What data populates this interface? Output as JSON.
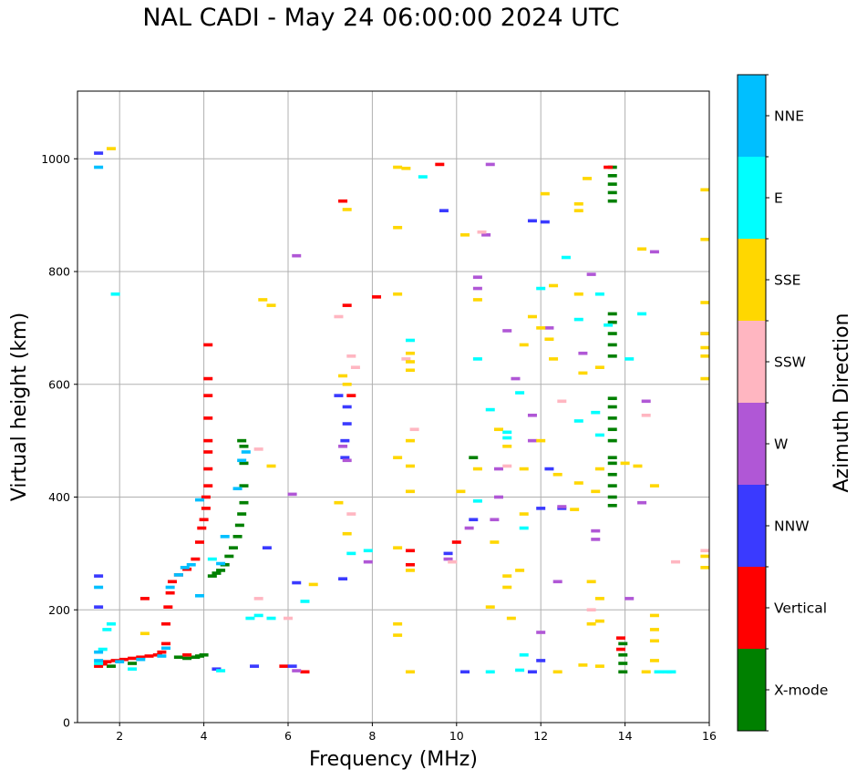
{
  "chart_data": {
    "type": "scatter",
    "title": "NAL CADI - May 24 06:00:00 2024 UTC",
    "xlabel": "Frequency (MHz)",
    "ylabel": "Virtual height (km)",
    "xlim": [
      1,
      16
    ],
    "ylim": [
      0,
      1120
    ],
    "xticks": [
      2,
      4,
      6,
      8,
      10,
      12,
      14,
      16
    ],
    "yticks": [
      0,
      200,
      400,
      600,
      800,
      1000
    ],
    "grid": true,
    "colorbar": {
      "title": "Azimuth Direction",
      "categories": [
        {
          "label": "X-mode",
          "color": "#008000"
        },
        {
          "label": "Vertical",
          "color": "#ff0000"
        },
        {
          "label": "NNW",
          "color": "#3a3aff"
        },
        {
          "label": "W",
          "color": "#b057d6"
        },
        {
          "label": "SSW",
          "color": "#ffb6c1"
        },
        {
          "label": "SSE",
          "color": "#ffd700"
        },
        {
          "label": "E",
          "color": "#00ffff"
        },
        {
          "label": "NNE",
          "color": "#00bfff"
        }
      ]
    },
    "series": [
      {
        "name": "X-mode",
        "points": [
          [
            4.0,
            120
          ],
          [
            3.9,
            118
          ],
          [
            3.8,
            116
          ],
          [
            3.6,
            114
          ],
          [
            3.4,
            116
          ],
          [
            4.2,
            260
          ],
          [
            4.3,
            265
          ],
          [
            4.4,
            270
          ],
          [
            4.5,
            280
          ],
          [
            4.6,
            295
          ],
          [
            4.7,
            310
          ],
          [
            4.8,
            330
          ],
          [
            4.85,
            350
          ],
          [
            4.9,
            370
          ],
          [
            4.95,
            390
          ],
          [
            4.95,
            420
          ],
          [
            4.95,
            460
          ],
          [
            4.95,
            490
          ],
          [
            4.9,
            500
          ],
          [
            13.7,
            925
          ],
          [
            13.7,
            940
          ],
          [
            13.7,
            955
          ],
          [
            13.7,
            970
          ],
          [
            13.7,
            985
          ],
          [
            13.7,
            650
          ],
          [
            13.7,
            670
          ],
          [
            13.7,
            690
          ],
          [
            13.7,
            710
          ],
          [
            13.7,
            725
          ],
          [
            13.7,
            385
          ],
          [
            13.7,
            400
          ],
          [
            13.7,
            420
          ],
          [
            13.7,
            440
          ],
          [
            13.7,
            460
          ],
          [
            13.7,
            470
          ],
          [
            13.7,
            500
          ],
          [
            13.7,
            520
          ],
          [
            13.7,
            540
          ],
          [
            13.7,
            560
          ],
          [
            13.7,
            575
          ],
          [
            13.95,
            90
          ],
          [
            13.95,
            105
          ],
          [
            13.95,
            120
          ],
          [
            13.95,
            140
          ],
          [
            10.4,
            470
          ],
          [
            2.3,
            105
          ],
          [
            1.8,
            100
          ]
        ]
      },
      {
        "name": "Vertical",
        "points": [
          [
            1.5,
            100
          ],
          [
            1.6,
            104
          ],
          [
            1.7,
            108
          ],
          [
            1.9,
            110
          ],
          [
            2.1,
            112
          ],
          [
            2.3,
            114
          ],
          [
            2.5,
            116
          ],
          [
            2.7,
            118
          ],
          [
            2.9,
            120
          ],
          [
            3.0,
            125
          ],
          [
            3.1,
            140
          ],
          [
            3.1,
            175
          ],
          [
            3.15,
            205
          ],
          [
            3.2,
            230
          ],
          [
            3.25,
            250
          ],
          [
            3.4,
            262
          ],
          [
            3.6,
            272
          ],
          [
            3.8,
            290
          ],
          [
            3.9,
            320
          ],
          [
            3.95,
            345
          ],
          [
            4.0,
            360
          ],
          [
            4.05,
            380
          ],
          [
            4.05,
            400
          ],
          [
            4.1,
            420
          ],
          [
            4.1,
            450
          ],
          [
            4.1,
            480
          ],
          [
            4.1,
            500
          ],
          [
            4.1,
            540
          ],
          [
            4.1,
            580
          ],
          [
            4.1,
            610
          ],
          [
            4.1,
            670
          ],
          [
            3.6,
            120
          ],
          [
            2.6,
            220
          ],
          [
            7.5,
            580
          ],
          [
            7.4,
            740
          ],
          [
            8.1,
            755
          ],
          [
            7.3,
            925
          ],
          [
            9.6,
            990
          ],
          [
            8.9,
            305
          ],
          [
            8.9,
            280
          ],
          [
            10.0,
            320
          ],
          [
            13.6,
            985
          ],
          [
            13.9,
            150
          ],
          [
            13.9,
            130
          ],
          [
            6.4,
            90
          ],
          [
            5.9,
            100
          ]
        ]
      },
      {
        "name": "NNW",
        "points": [
          [
            1.5,
            1010
          ],
          [
            1.5,
            260
          ],
          [
            1.5,
            205
          ],
          [
            5.2,
            100
          ],
          [
            6.1,
            100
          ],
          [
            6.2,
            248
          ],
          [
            7.2,
            580
          ],
          [
            7.4,
            560
          ],
          [
            7.4,
            530
          ],
          [
            7.35,
            500
          ],
          [
            7.35,
            470
          ],
          [
            10.4,
            360
          ],
          [
            9.8,
            300
          ],
          [
            10.2,
            90
          ],
          [
            12.0,
            380
          ],
          [
            12.5,
            380
          ],
          [
            11.8,
            890
          ],
          [
            11.8,
            90
          ],
          [
            9.7,
            908
          ],
          [
            12.1,
            888
          ],
          [
            12.0,
            110
          ],
          [
            12.2,
            450
          ],
          [
            7.3,
            255
          ],
          [
            5.5,
            310
          ],
          [
            4.3,
            95
          ]
        ]
      },
      {
        "name": "W",
        "points": [
          [
            6.2,
            828
          ],
          [
            10.5,
            790
          ],
          [
            10.5,
            770
          ],
          [
            11.2,
            695
          ],
          [
            11.4,
            610
          ],
          [
            11.8,
            545
          ],
          [
            11.8,
            500
          ],
          [
            12.2,
            700
          ],
          [
            13.2,
            795
          ],
          [
            13.0,
            655
          ],
          [
            13.3,
            340
          ],
          [
            13.3,
            325
          ],
          [
            14.5,
            570
          ],
          [
            14.4,
            390
          ],
          [
            14.1,
            220
          ],
          [
            11.0,
            450
          ],
          [
            11.0,
            400
          ],
          [
            10.9,
            360
          ],
          [
            10.3,
            345
          ],
          [
            10.7,
            865
          ],
          [
            10.8,
            990
          ],
          [
            12.4,
            250
          ],
          [
            12.5,
            383
          ],
          [
            7.3,
            490
          ],
          [
            7.4,
            465
          ],
          [
            6.1,
            405
          ],
          [
            7.9,
            285
          ],
          [
            9.8,
            290
          ],
          [
            6.2,
            92
          ],
          [
            12.0,
            160
          ],
          [
            14.7,
            835
          ],
          [
            15.9,
            690
          ]
        ]
      },
      {
        "name": "SSW",
        "points": [
          [
            5.3,
            485
          ],
          [
            9.0,
            520
          ],
          [
            7.5,
            650
          ],
          [
            8.8,
            645
          ],
          [
            12.5,
            570
          ],
          [
            14.5,
            545
          ],
          [
            11.2,
            455
          ],
          [
            7.5,
            370
          ],
          [
            6.0,
            185
          ],
          [
            5.3,
            220
          ],
          [
            9.9,
            285
          ],
          [
            10.6,
            870
          ],
          [
            15.2,
            285
          ],
          [
            15.9,
            305
          ],
          [
            13.2,
            200
          ],
          [
            7.2,
            720
          ],
          [
            7.6,
            630
          ]
        ]
      },
      {
        "name": "SSE",
        "points": [
          [
            8.6,
            985
          ],
          [
            8.8,
            983
          ],
          [
            12.1,
            938
          ],
          [
            12.9,
            920
          ],
          [
            12.9,
            908
          ],
          [
            13.1,
            965
          ],
          [
            8.6,
            878
          ],
          [
            10.2,
            865
          ],
          [
            15.9,
            945
          ],
          [
            15.9,
            857
          ],
          [
            14.4,
            840
          ],
          [
            12.3,
            775
          ],
          [
            12.9,
            760
          ],
          [
            8.6,
            760
          ],
          [
            10.5,
            750
          ],
          [
            11.8,
            720
          ],
          [
            12.0,
            700
          ],
          [
            12.3,
            645
          ],
          [
            13.0,
            620
          ],
          [
            13.4,
            630
          ],
          [
            11.6,
            670
          ],
          [
            12.2,
            680
          ],
          [
            15.9,
            745
          ],
          [
            15.9,
            690
          ],
          [
            15.9,
            665
          ],
          [
            15.9,
            650
          ],
          [
            15.9,
            610
          ],
          [
            8.9,
            655
          ],
          [
            8.9,
            640
          ],
          [
            8.9,
            625
          ],
          [
            7.3,
            615
          ],
          [
            7.4,
            600
          ],
          [
            7.4,
            910
          ],
          [
            5.4,
            750
          ],
          [
            5.6,
            740
          ],
          [
            10.5,
            450
          ],
          [
            11.0,
            520
          ],
          [
            11.2,
            490
          ],
          [
            11.6,
            450
          ],
          [
            12.0,
            500
          ],
          [
            12.4,
            440
          ],
          [
            12.9,
            425
          ],
          [
            13.3,
            410
          ],
          [
            12.8,
            378
          ],
          [
            13.4,
            450
          ],
          [
            14.0,
            460
          ],
          [
            14.3,
            455
          ],
          [
            14.7,
            420
          ],
          [
            8.6,
            470
          ],
          [
            8.9,
            455
          ],
          [
            8.9,
            410
          ],
          [
            7.2,
            390
          ],
          [
            7.4,
            335
          ],
          [
            8.6,
            310
          ],
          [
            8.9,
            270
          ],
          [
            10.1,
            410
          ],
          [
            11.6,
            370
          ],
          [
            11.5,
            270
          ],
          [
            11.2,
            260
          ],
          [
            11.2,
            240
          ],
          [
            10.8,
            205
          ],
          [
            11.3,
            185
          ],
          [
            13.2,
            250
          ],
          [
            13.4,
            220
          ],
          [
            13.4,
            180
          ],
          [
            13.2,
            175
          ],
          [
            14.7,
            190
          ],
          [
            14.7,
            165
          ],
          [
            14.7,
            145
          ],
          [
            14.7,
            110
          ],
          [
            8.6,
            175
          ],
          [
            8.6,
            155
          ],
          [
            10.9,
            320
          ],
          [
            15.9,
            295
          ],
          [
            15.9,
            275
          ],
          [
            13.0,
            102
          ],
          [
            12.4,
            90
          ],
          [
            8.9,
            90
          ],
          [
            13.4,
            100
          ],
          [
            14.5,
            90
          ],
          [
            6.6,
            245
          ],
          [
            2.6,
            158
          ],
          [
            5.6,
            455
          ],
          [
            1.8,
            1018
          ],
          [
            8.9,
            500
          ]
        ]
      },
      {
        "name": "E",
        "points": [
          [
            1.5,
            105
          ],
          [
            1.6,
            130
          ],
          [
            1.7,
            165
          ],
          [
            1.8,
            175
          ],
          [
            1.9,
            760
          ],
          [
            2.3,
            95
          ],
          [
            4.4,
            92
          ],
          [
            5.3,
            190
          ],
          [
            5.1,
            185
          ],
          [
            5.6,
            185
          ],
          [
            6.4,
            215
          ],
          [
            7.5,
            300
          ],
          [
            7.9,
            305
          ],
          [
            8.9,
            678
          ],
          [
            9.2,
            968
          ],
          [
            10.5,
            393
          ],
          [
            10.8,
            555
          ],
          [
            11.2,
            515
          ],
          [
            11.5,
            585
          ],
          [
            11.6,
            345
          ],
          [
            12.6,
            825
          ],
          [
            12.9,
            715
          ],
          [
            13.4,
            760
          ],
          [
            13.3,
            550
          ],
          [
            13.4,
            510
          ],
          [
            13.6,
            705
          ],
          [
            14.4,
            725
          ],
          [
            14.1,
            645
          ],
          [
            15.1,
            90
          ],
          [
            15.0,
            90
          ],
          [
            14.8,
            90
          ],
          [
            10.8,
            90
          ],
          [
            11.5,
            93
          ],
          [
            11.6,
            120
          ],
          [
            12.0,
            770
          ],
          [
            12.9,
            535
          ],
          [
            11.2,
            505
          ],
          [
            10.5,
            645
          ],
          [
            4.2,
            290
          ]
        ]
      },
      {
        "name": "NNE",
        "points": [
          [
            1.5,
            985
          ],
          [
            1.5,
            240
          ],
          [
            1.5,
            125
          ],
          [
            1.5,
            110
          ],
          [
            2.0,
            108
          ],
          [
            2.5,
            112
          ],
          [
            3.0,
            118
          ],
          [
            3.1,
            132
          ],
          [
            3.2,
            240
          ],
          [
            3.4,
            262
          ],
          [
            3.55,
            275
          ],
          [
            3.7,
            280
          ],
          [
            3.9,
            395
          ],
          [
            4.4,
            282
          ],
          [
            4.8,
            415
          ],
          [
            4.9,
            465
          ],
          [
            5.0,
            480
          ],
          [
            4.5,
            330
          ],
          [
            3.9,
            225
          ]
        ]
      }
    ]
  }
}
